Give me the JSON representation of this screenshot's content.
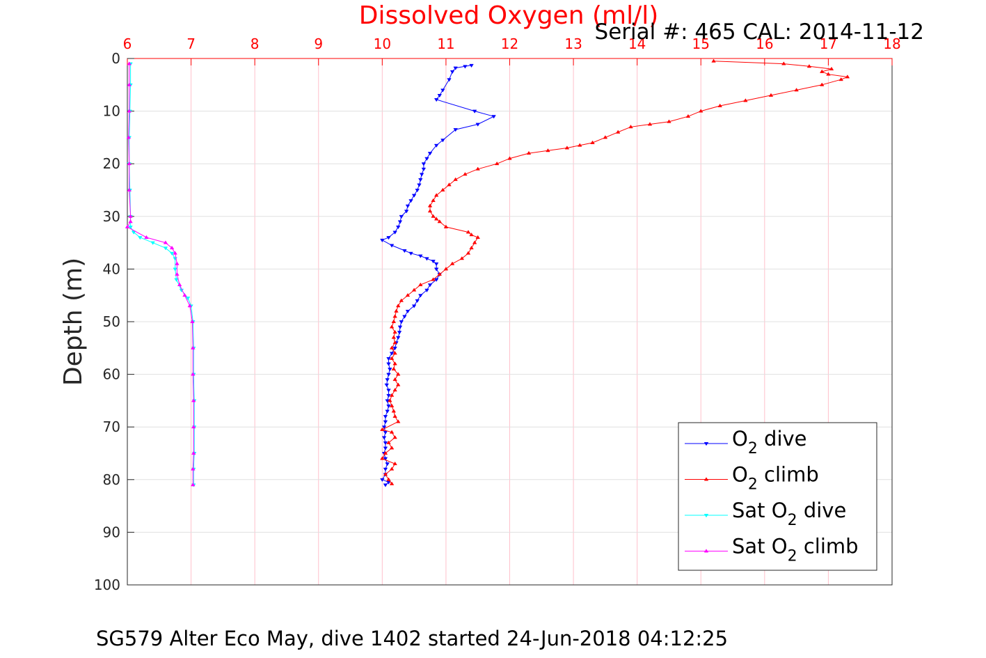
{
  "chart_data": {
    "type": "line",
    "title": "Dissolved Oxygen (ml/l)",
    "serial_note": "Serial #: 465  CAL: 2014-11-12",
    "footer": "SG579 Alter Eco May, dive 1402 started 24-Jun-2018 04:12:25",
    "xlabel": "Dissolved Oxygen (ml/l)",
    "ylabel": "Depth (m)",
    "xlim": [
      6,
      18
    ],
    "ylim": [
      0,
      100
    ],
    "y_reversed": true,
    "x_axis_position": "top",
    "x_ticks": [
      6,
      7,
      8,
      9,
      10,
      11,
      12,
      13,
      14,
      15,
      16,
      17,
      18
    ],
    "y_ticks": [
      0,
      10,
      20,
      30,
      40,
      50,
      60,
      70,
      80,
      90,
      100
    ],
    "x_grid_color": "#ffc0cb",
    "grid": true,
    "legend_position": "bottom-right",
    "series": [
      {
        "name": "O2 dive",
        "legend_main": "O",
        "legend_sub": "2",
        "legend_suffix": " dive",
        "color": "#0000ff",
        "marker": "triangle-down",
        "points": [
          [
            11.4,
            1.3
          ],
          [
            11.3,
            1.5
          ],
          [
            11.15,
            1.8
          ],
          [
            11.1,
            2.5
          ],
          [
            11.05,
            4
          ],
          [
            10.95,
            6
          ],
          [
            10.9,
            7
          ],
          [
            10.85,
            7.8
          ],
          [
            11.45,
            10
          ],
          [
            11.75,
            11
          ],
          [
            11.5,
            12.5
          ],
          [
            11.15,
            13.5
          ],
          [
            10.95,
            15.5
          ],
          [
            10.85,
            16.5
          ],
          [
            10.75,
            18
          ],
          [
            10.7,
            19
          ],
          [
            10.65,
            20
          ],
          [
            10.65,
            21
          ],
          [
            10.62,
            22
          ],
          [
            10.6,
            23
          ],
          [
            10.58,
            24
          ],
          [
            10.55,
            25
          ],
          [
            10.5,
            26
          ],
          [
            10.45,
            27
          ],
          [
            10.4,
            28
          ],
          [
            10.38,
            29
          ],
          [
            10.3,
            30
          ],
          [
            10.28,
            31
          ],
          [
            10.25,
            32
          ],
          [
            10.2,
            33
          ],
          [
            10.1,
            34
          ],
          [
            10.0,
            34.5
          ],
          [
            10.15,
            35.5
          ],
          [
            10.35,
            36.5
          ],
          [
            10.45,
            37
          ],
          [
            10.6,
            37.5
          ],
          [
            10.7,
            38
          ],
          [
            10.8,
            38.5
          ],
          [
            10.85,
            39
          ],
          [
            10.85,
            40
          ],
          [
            10.9,
            41
          ],
          [
            10.85,
            42
          ],
          [
            10.75,
            43
          ],
          [
            10.7,
            44
          ],
          [
            10.6,
            45
          ],
          [
            10.55,
            46
          ],
          [
            10.5,
            47
          ],
          [
            10.4,
            48
          ],
          [
            10.35,
            49
          ],
          [
            10.3,
            50
          ],
          [
            10.28,
            51
          ],
          [
            10.27,
            52
          ],
          [
            10.25,
            53
          ],
          [
            10.22,
            54
          ],
          [
            10.2,
            55
          ],
          [
            10.15,
            56
          ],
          [
            10.1,
            57
          ],
          [
            10.1,
            58
          ],
          [
            10.12,
            59
          ],
          [
            10.1,
            60
          ],
          [
            10.08,
            61
          ],
          [
            10.07,
            62
          ],
          [
            10.1,
            63
          ],
          [
            10.1,
            64
          ],
          [
            10.08,
            65
          ],
          [
            10.1,
            66
          ],
          [
            10.08,
            67
          ],
          [
            10.05,
            68
          ],
          [
            10.05,
            69
          ],
          [
            10.03,
            70
          ],
          [
            10.05,
            71
          ],
          [
            10.03,
            72
          ],
          [
            10.05,
            73
          ],
          [
            10.05,
            74
          ],
          [
            10.03,
            75
          ],
          [
            10.05,
            76
          ],
          [
            10.08,
            77
          ],
          [
            10.05,
            78
          ],
          [
            10.05,
            79
          ],
          [
            10.0,
            80
          ],
          [
            10.1,
            80.5
          ],
          [
            10.05,
            81
          ]
        ]
      },
      {
        "name": "O2 climb",
        "legend_main": "O",
        "legend_sub": "2",
        "legend_suffix": " climb",
        "color": "#ff0000",
        "marker": "triangle-up",
        "points": [
          [
            10.15,
            80.8
          ],
          [
            10.1,
            80
          ],
          [
            10.05,
            79
          ],
          [
            10.15,
            78
          ],
          [
            10.2,
            77
          ],
          [
            10.0,
            76
          ],
          [
            10.05,
            75
          ],
          [
            10.15,
            74
          ],
          [
            10.1,
            73
          ],
          [
            10.2,
            72
          ],
          [
            10.15,
            71
          ],
          [
            10.0,
            70.5
          ],
          [
            10.25,
            69
          ],
          [
            10.2,
            68
          ],
          [
            10.18,
            67
          ],
          [
            10.15,
            66
          ],
          [
            10.12,
            65
          ],
          [
            10.15,
            64
          ],
          [
            10.2,
            63
          ],
          [
            10.25,
            62
          ],
          [
            10.2,
            61
          ],
          [
            10.25,
            60
          ],
          [
            10.18,
            59
          ],
          [
            10.2,
            58
          ],
          [
            10.15,
            57
          ],
          [
            10.2,
            56
          ],
          [
            10.15,
            55
          ],
          [
            10.2,
            54
          ],
          [
            10.18,
            53
          ],
          [
            10.2,
            52
          ],
          [
            10.15,
            51
          ],
          [
            10.18,
            50
          ],
          [
            10.2,
            49
          ],
          [
            10.22,
            48
          ],
          [
            10.25,
            47
          ],
          [
            10.3,
            46
          ],
          [
            10.4,
            45
          ],
          [
            10.5,
            44
          ],
          [
            10.6,
            43
          ],
          [
            10.8,
            42
          ],
          [
            10.9,
            41
          ],
          [
            11.0,
            40
          ],
          [
            11.1,
            39
          ],
          [
            11.25,
            38
          ],
          [
            11.35,
            37
          ],
          [
            11.4,
            36
          ],
          [
            11.45,
            35
          ],
          [
            11.5,
            34
          ],
          [
            11.4,
            33.5
          ],
          [
            11.35,
            33
          ],
          [
            11.0,
            32
          ],
          [
            10.9,
            31
          ],
          [
            10.85,
            30.5
          ],
          [
            10.8,
            30
          ],
          [
            10.75,
            29
          ],
          [
            10.75,
            28
          ],
          [
            10.8,
            27
          ],
          [
            10.85,
            26
          ],
          [
            10.95,
            25
          ],
          [
            11.05,
            24
          ],
          [
            11.15,
            23
          ],
          [
            11.3,
            22
          ],
          [
            11.5,
            21
          ],
          [
            11.8,
            20
          ],
          [
            12.0,
            19
          ],
          [
            12.3,
            18
          ],
          [
            12.6,
            17.5
          ],
          [
            12.9,
            17
          ],
          [
            13.1,
            16.5
          ],
          [
            13.3,
            16
          ],
          [
            13.5,
            15
          ],
          [
            13.7,
            14
          ],
          [
            13.9,
            13
          ],
          [
            14.2,
            12.5
          ],
          [
            14.5,
            12
          ],
          [
            14.8,
            11
          ],
          [
            15.0,
            10
          ],
          [
            15.3,
            9
          ],
          [
            15.7,
            8
          ],
          [
            16.1,
            7
          ],
          [
            16.5,
            6
          ],
          [
            16.9,
            5
          ],
          [
            17.2,
            4
          ],
          [
            17.3,
            3.5
          ],
          [
            17.0,
            3
          ],
          [
            16.9,
            2.5
          ],
          [
            17.05,
            2
          ],
          [
            16.7,
            1.5
          ],
          [
            16.3,
            1
          ],
          [
            15.2,
            0.5
          ]
        ]
      },
      {
        "name": "Sat O2 dive",
        "legend_main": "Sat O",
        "legend_sub": "2",
        "legend_suffix": " dive",
        "color": "#00ffff",
        "marker": "triangle-down",
        "points": [
          [
            6.05,
            1
          ],
          [
            6.05,
            5
          ],
          [
            6.04,
            10
          ],
          [
            6.03,
            15
          ],
          [
            6.03,
            20
          ],
          [
            6.04,
            25
          ],
          [
            6.05,
            30
          ],
          [
            6.05,
            32
          ],
          [
            6.1,
            33
          ],
          [
            6.2,
            34
          ],
          [
            6.4,
            35
          ],
          [
            6.6,
            36
          ],
          [
            6.7,
            37
          ],
          [
            6.75,
            38
          ],
          [
            6.75,
            40
          ],
          [
            6.77,
            42
          ],
          [
            6.85,
            44
          ],
          [
            6.95,
            45.5
          ],
          [
            7.0,
            47
          ],
          [
            7.03,
            50
          ],
          [
            7.04,
            55
          ],
          [
            7.04,
            60
          ],
          [
            7.05,
            65
          ],
          [
            7.05,
            70
          ],
          [
            7.05,
            75
          ],
          [
            7.04,
            78
          ],
          [
            7.04,
            81
          ]
        ]
      },
      {
        "name": "Sat O2 climb",
        "legend_main": "Sat O",
        "legend_sub": "2",
        "legend_suffix": " climb",
        "color": "#ff00ff",
        "marker": "triangle-up",
        "points": [
          [
            7.03,
            81
          ],
          [
            7.03,
            78
          ],
          [
            7.04,
            75
          ],
          [
            7.04,
            70
          ],
          [
            7.04,
            65
          ],
          [
            7.03,
            60
          ],
          [
            7.03,
            55
          ],
          [
            7.02,
            50
          ],
          [
            6.98,
            47
          ],
          [
            6.9,
            45
          ],
          [
            6.82,
            43
          ],
          [
            6.78,
            41
          ],
          [
            6.78,
            39
          ],
          [
            6.75,
            37
          ],
          [
            6.7,
            36
          ],
          [
            6.6,
            35
          ],
          [
            6.3,
            34
          ],
          [
            6.0,
            32
          ],
          [
            6.05,
            31
          ],
          [
            6.05,
            30
          ],
          [
            6.03,
            25
          ],
          [
            6.03,
            20
          ],
          [
            6.02,
            15
          ],
          [
            6.03,
            10
          ],
          [
            6.03,
            5
          ],
          [
            6.03,
            1
          ]
        ]
      }
    ]
  }
}
